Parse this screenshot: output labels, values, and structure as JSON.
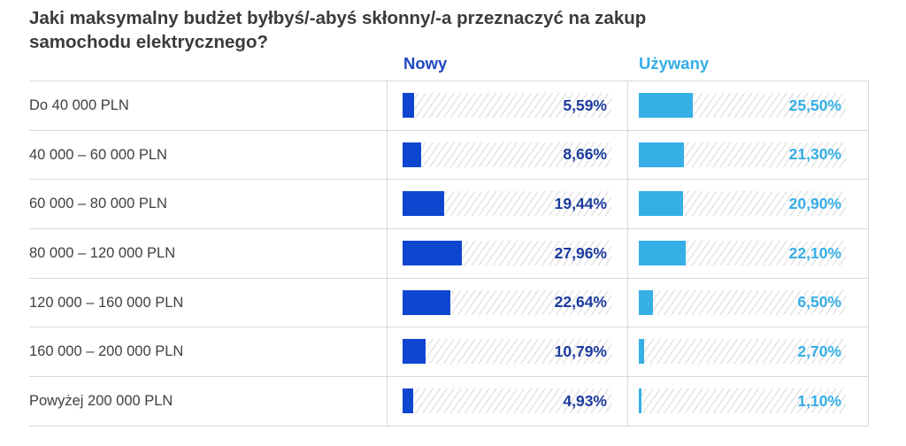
{
  "title": "Jaki maksymalny budżet byłbyś/-abyś skłonny/-a przeznaczyć na zakup samochodu elektrycznego?",
  "columns": {
    "nowy": "Nowy",
    "uzywany": "Używany"
  },
  "colors": {
    "nowy_bar": "#0f46cf",
    "nowy_text": "#1c3b9e",
    "uzywany": "#36aee6",
    "grid": "#d8d8d8"
  },
  "rows": [
    {
      "label": "Do 40 000 PLN",
      "nowy": "5,59%",
      "uzywany": "25,50%",
      "nowy_val": 5.59,
      "uzywany_val": 25.5
    },
    {
      "label": "40 000 – 60 000 PLN",
      "nowy": "8,66%",
      "uzywany": "21,30%",
      "nowy_val": 8.66,
      "uzywany_val": 21.3
    },
    {
      "label": "60 000 – 80 000 PLN",
      "nowy": "19,44%",
      "uzywany": "20,90%",
      "nowy_val": 19.44,
      "uzywany_val": 20.9
    },
    {
      "label": "80 000 – 120 000 PLN",
      "nowy": "27,96%",
      "uzywany": "22,10%",
      "nowy_val": 27.96,
      "uzywany_val": 22.1
    },
    {
      "label": "120 000 – 160 000 PLN",
      "nowy": "22,64%",
      "uzywany": "6,50%",
      "nowy_val": 22.64,
      "uzywany_val": 6.5
    },
    {
      "label": "160 000 – 200 000 PLN",
      "nowy": "10,79%",
      "uzywany": "2,70%",
      "nowy_val": 10.79,
      "uzywany_val": 2.7
    },
    {
      "label": "Powyżej 200 000 PLN",
      "nowy": "4,93%",
      "uzywany": "1,10%",
      "nowy_val": 4.93,
      "uzywany_val": 1.1
    }
  ],
  "chart_data": {
    "type": "bar",
    "orientation": "horizontal",
    "title": "Jaki maksymalny budżet byłbyś/-abyś skłonny/-a przeznaczyć na zakup samochodu elektrycznego?",
    "categories": [
      "Do 40 000 PLN",
      "40 000 – 60 000 PLN",
      "60 000 – 80 000 PLN",
      "80 000 – 120 000 PLN",
      "120 000 – 160 000 PLN",
      "160 000 – 200 000 PLN",
      "Powyżej 200 000 PLN"
    ],
    "series": [
      {
        "name": "Nowy",
        "color": "#0f46cf",
        "values": [
          5.59,
          8.66,
          19.44,
          27.96,
          22.64,
          10.79,
          4.93
        ]
      },
      {
        "name": "Używany",
        "color": "#36aee6",
        "values": [
          25.5,
          21.3,
          20.9,
          22.1,
          6.5,
          2.7,
          1.1
        ]
      }
    ],
    "unit": "%",
    "xlabel": "",
    "ylabel": "",
    "grid": true,
    "legend_position": "top (column headers)"
  }
}
